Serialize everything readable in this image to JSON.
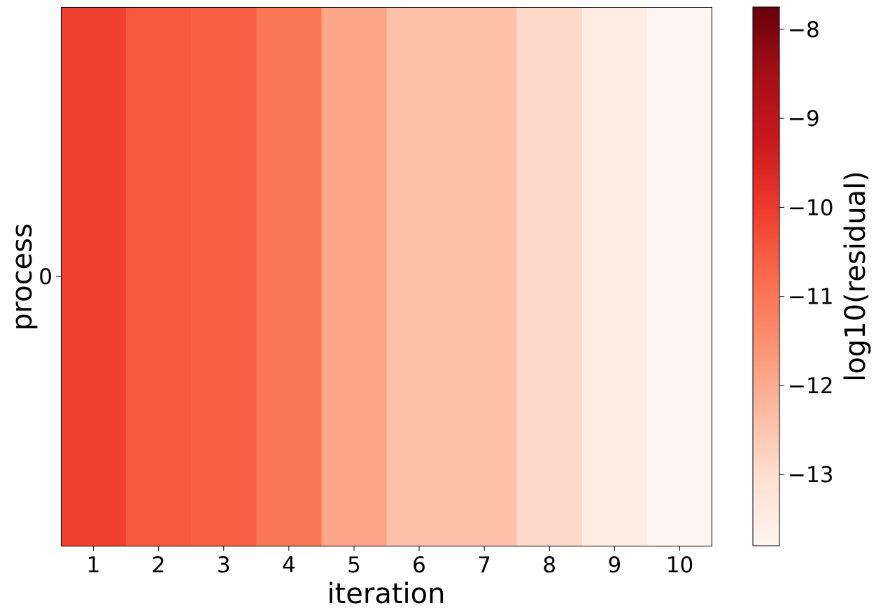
{
  "chart_data": {
    "type": "heatmap",
    "title": "",
    "xlabel": "iteration",
    "ylabel": "process",
    "x_categories": [
      "1",
      "2",
      "3",
      "4",
      "5",
      "6",
      "7",
      "8",
      "9",
      "10"
    ],
    "y_categories": [
      "0"
    ],
    "values": [
      [
        -10.1,
        -10.5,
        -10.6,
        -11.0,
        -11.9,
        -12.4,
        -12.4,
        -12.9,
        -13.5,
        -13.75
      ]
    ],
    "colorbar": {
      "label": "log10(residual)",
      "range": [
        -13.8,
        -7.75
      ],
      "ticks": [
        -8,
        -9,
        -10,
        -11,
        -12,
        -13
      ],
      "tick_labels": [
        "−8",
        "−9",
        "−10",
        "−11",
        "−12",
        "−13"
      ],
      "colormap": "Reds",
      "colormap_stops": [
        "#fff5f0",
        "#fee0d2",
        "#fcbba1",
        "#fc9272",
        "#fb6a4a",
        "#ef3b2c",
        "#cb181d",
        "#a50f15",
        "#67000d"
      ]
    }
  }
}
